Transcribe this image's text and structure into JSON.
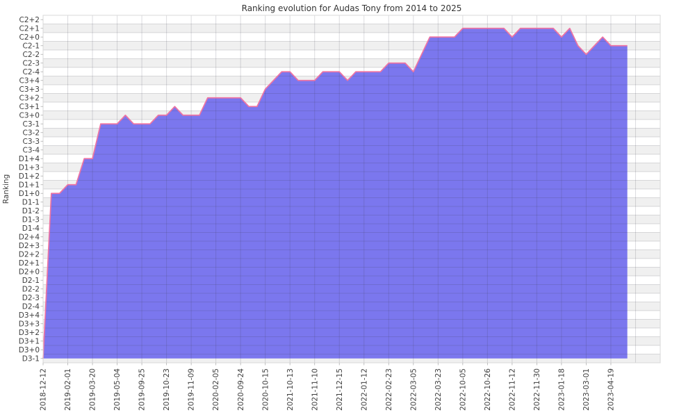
{
  "chart_data": {
    "type": "area",
    "title": "Ranking evolution for Audas Tony from 2014 to 2025",
    "ylabel": "Ranking",
    "xlabel": "",
    "legend": "none",
    "grid": "on",
    "y_axis_type": "categorical",
    "y_categories_top_to_bottom": [
      "C2+2",
      "C2+1",
      "C2+0",
      "C2-1",
      "C2-2",
      "C2-3",
      "C2-4",
      "C3+4",
      "C3+3",
      "C3+2",
      "C3+1",
      "C3+0",
      "C3-1",
      "C3-2",
      "C3-3",
      "C3-4",
      "D1+4",
      "D1+3",
      "D1+2",
      "D1+1",
      "D1+0",
      "D1-1",
      "D1-2",
      "D1-3",
      "D1-4",
      "D2+4",
      "D2+3",
      "D2+2",
      "D2+1",
      "D2+0",
      "D2-1",
      "D2-2",
      "D2-3",
      "D2-4",
      "D3+4",
      "D3+3",
      "D3+2",
      "D3+1",
      "D3+0",
      "D3-1"
    ],
    "x_tick_labels": [
      "2018-12-12",
      "2019-02-01",
      "2019-03-20",
      "2019-05-04",
      "2019-09-25",
      "2019-10-23",
      "2019-11-09",
      "2020-02-05",
      "2020-09-24",
      "2020-10-15",
      "2021-10-13",
      "2021-11-10",
      "2021-12-15",
      "2022-01-12",
      "2022-02-23",
      "2022-03-05",
      "2022-03-23",
      "2022-10-05",
      "2022-10-26",
      "2022-11-12",
      "2022-11-30",
      "2023-01-18",
      "2023-03-01",
      "2023-04-19"
    ],
    "x_tick_every_n_points": 3,
    "series": [
      {
        "name": "ranking",
        "values": [
          "D3-1",
          "D1+0",
          "D1+0",
          "D1+1",
          "D1+1",
          "D1+4",
          "D1+4",
          "C3-1",
          "C3-1",
          "C3-1",
          "C3+0",
          "C3-1",
          "C3-1",
          "C3-1",
          "C3+0",
          "C3+0",
          "C3+1",
          "C3+0",
          "C3+0",
          "C3+0",
          "C3+2",
          "C3+2",
          "C3+2",
          "C3+2",
          "C3+2",
          "C3+1",
          "C3+1",
          "C3+3",
          "C3+4",
          "C2-4",
          "C2-4",
          "C3+4",
          "C3+4",
          "C3+4",
          "C2-4",
          "C2-4",
          "C2-4",
          "C3+4",
          "C2-4",
          "C2-4",
          "C2-4",
          "C2-4",
          "C2-3",
          "C2-3",
          "C2-3",
          "C2-4",
          "C2-2",
          "C2+0",
          "C2+0",
          "C2+0",
          "C2+0",
          "C2+1",
          "C2+1",
          "C2+1",
          "C2+1",
          "C2+1",
          "C2+1",
          "C2+0",
          "C2+1",
          "C2+1",
          "C2+1",
          "C2+1",
          "C2+1",
          "C2+0",
          "C2+1",
          "C2-1",
          "C2-2",
          "C2-1",
          "C2+0",
          "C2-1",
          "C2-1",
          "C2-1"
        ]
      }
    ],
    "colors": {
      "area_fill": "#7b77ee",
      "line": "#ee74a3",
      "row_stripe": "#f0f0f0",
      "grid": "rgba(60,60,80,0.18)",
      "plot_border": "#d8d8d8",
      "tick_mark": "#b0b0b0",
      "text": "#3d3d3d",
      "background": "#ffffff"
    }
  }
}
